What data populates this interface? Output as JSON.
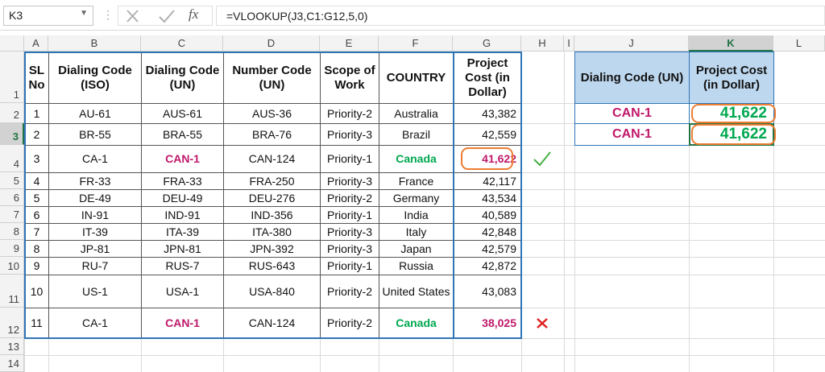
{
  "formula_bar": {
    "name_box": "K3",
    "function_icon": "fx",
    "formula": "=VLOOKUP(J3,C1:G12,5,0)"
  },
  "column_headers": [
    "A",
    "B",
    "C",
    "D",
    "E",
    "F",
    "G",
    "H",
    "I",
    "J",
    "K",
    "L"
  ],
  "row_headers": [
    "1",
    "2",
    "3",
    "4",
    "5",
    "6",
    "7",
    "8",
    "9",
    "10",
    "11",
    "12",
    "13",
    "14"
  ],
  "table": {
    "header": [
      "SL No",
      "Dialing Code (ISO)",
      "Dialing Code (UN)",
      "Number Code (UN)",
      "Scope of Work",
      "COUNTRY",
      "Project Cost (in Dollar)"
    ],
    "rows": [
      [
        "1",
        "AU-61",
        "AUS-61",
        "AUS-36",
        "Priority-2",
        "Australia",
        "43,382"
      ],
      [
        "2",
        "BR-55",
        "BRA-55",
        "BRA-76",
        "Priority-3",
        "Brazil",
        "42,559"
      ],
      [
        "3",
        "CA-1",
        "CAN-1",
        "CAN-124",
        "Priority-1",
        "Canada",
        "41,622"
      ],
      [
        "4",
        "FR-33",
        "FRA-33",
        "FRA-250",
        "Priority-3",
        "France",
        "42,117"
      ],
      [
        "5",
        "DE-49",
        "DEU-49",
        "DEU-276",
        "Priority-2",
        "Germany",
        "43,534"
      ],
      [
        "6",
        "IN-91",
        "IND-91",
        "IND-356",
        "Priority-1",
        "India",
        "40,589"
      ],
      [
        "7",
        "IT-39",
        "ITA-39",
        "ITA-380",
        "Priority-3",
        "Italy",
        "42,848"
      ],
      [
        "8",
        "JP-81",
        "JPN-81",
        "JPN-392",
        "Priority-3",
        "Japan",
        "42,579"
      ],
      [
        "9",
        "RU-7",
        "RUS-7",
        "RUS-643",
        "Priority-1",
        "Russia",
        "42,872"
      ],
      [
        "10",
        "US-1",
        "USA-1",
        "USA-840",
        "Priority-2",
        "United States",
        "43,083"
      ],
      [
        "11",
        "CA-1",
        "CAN-1",
        "CAN-124",
        "Priority-2",
        "Canada",
        "38,025"
      ]
    ]
  },
  "lookup": {
    "header": [
      "Dialing Code (UN)",
      "Project Cost (in Dollar)"
    ],
    "rows": [
      [
        "CAN-1",
        "41,622"
      ],
      [
        "CAN-1",
        "41,622"
      ]
    ]
  }
}
